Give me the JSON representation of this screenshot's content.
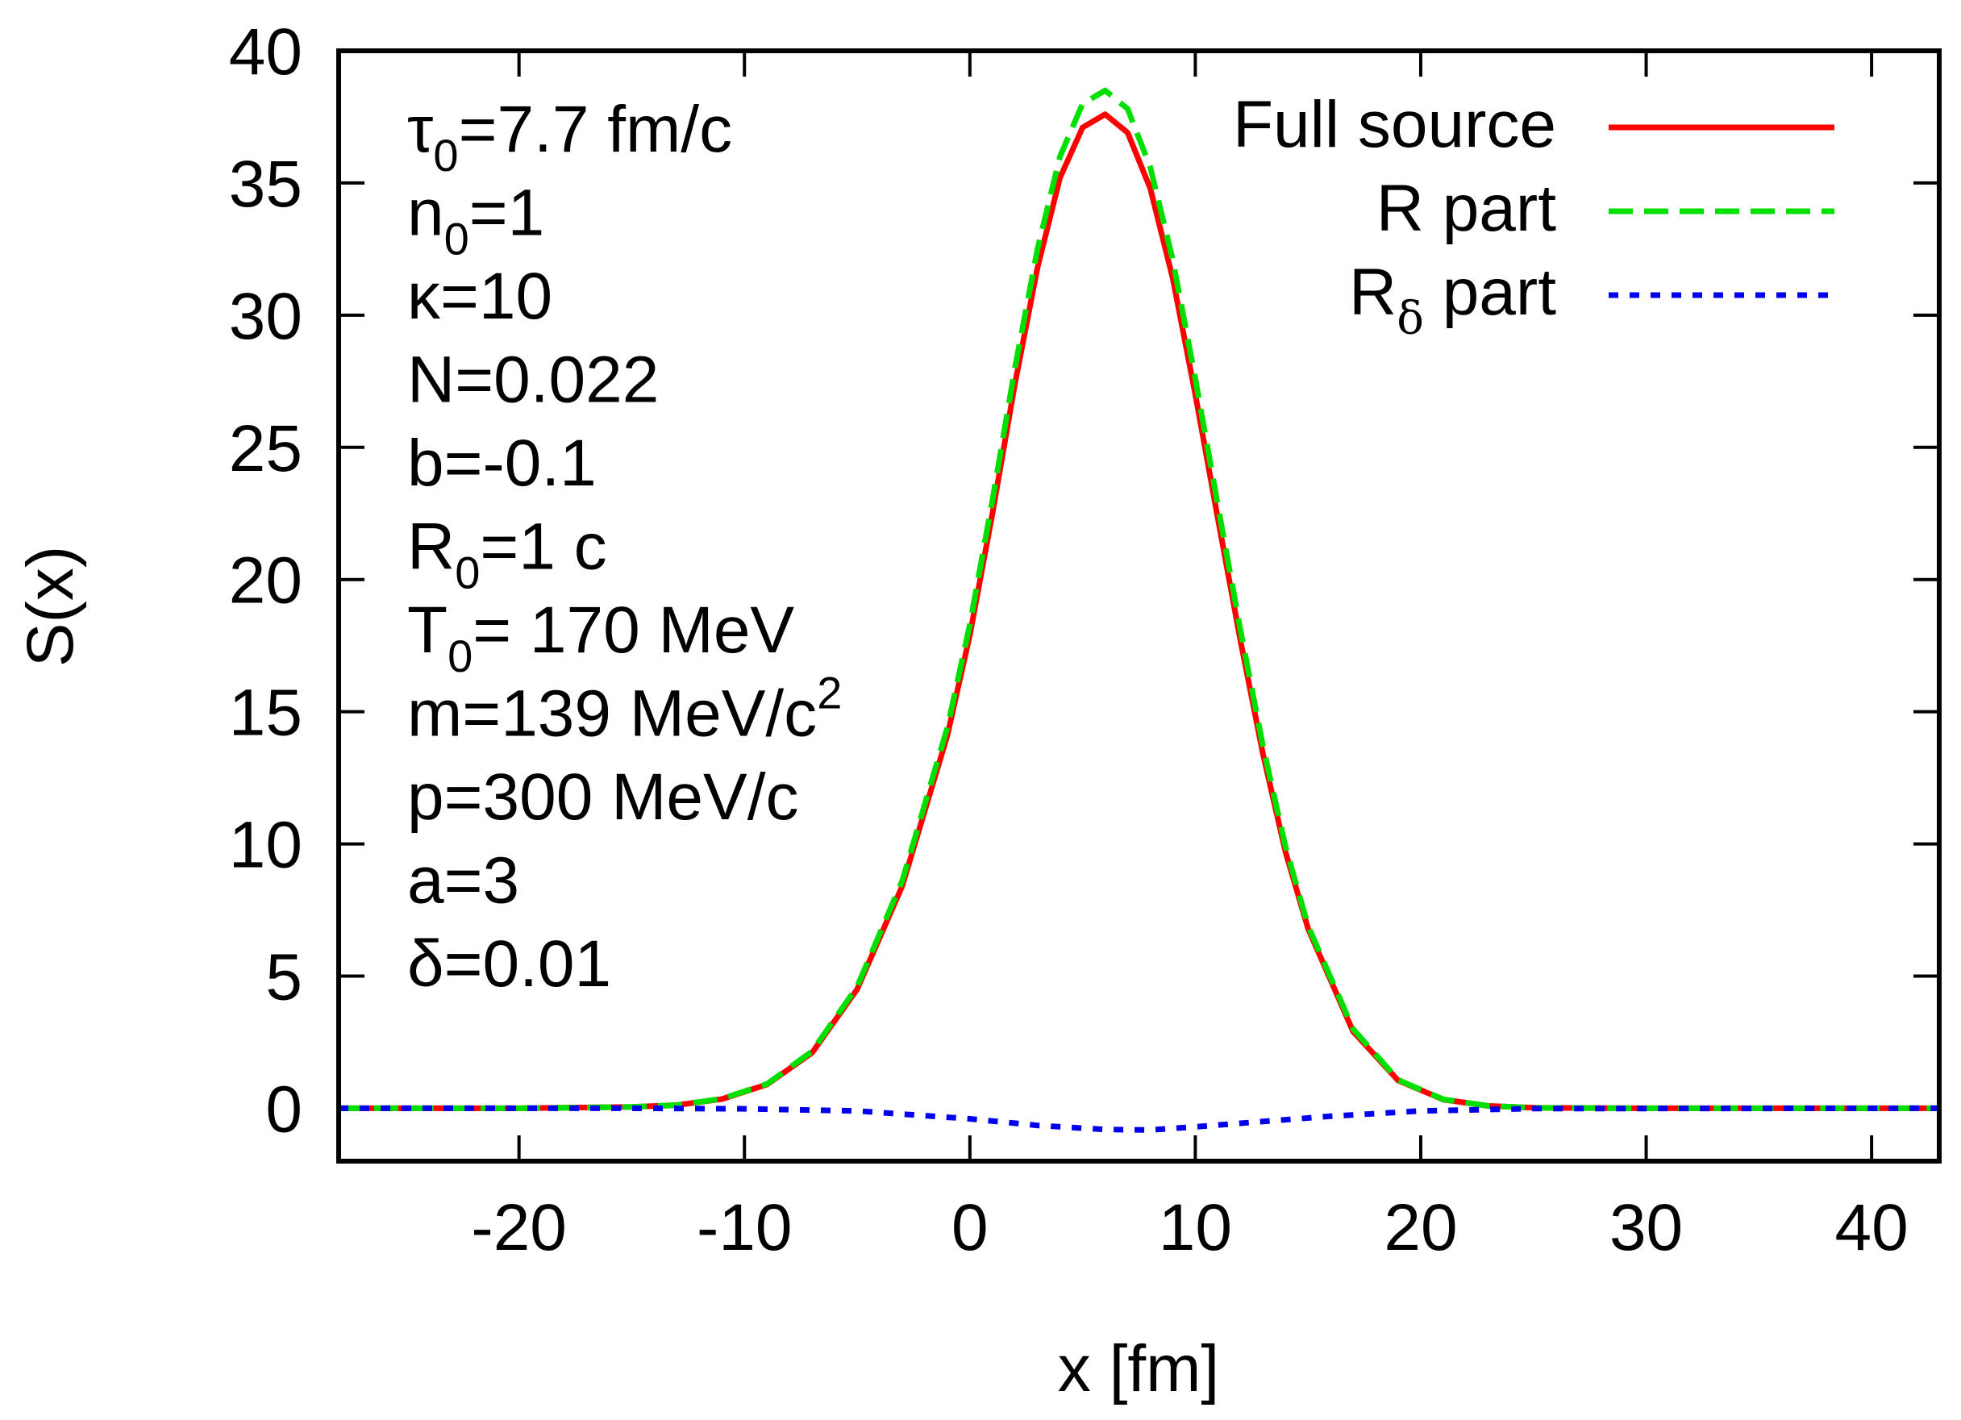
{
  "chart_data": {
    "type": "line",
    "title": "",
    "xlabel": "x [fm]",
    "ylabel": "S(x)",
    "xlim": [
      -28,
      43
    ],
    "ylim": [
      -2,
      40
    ],
    "xticks": [
      -20,
      -10,
      0,
      10,
      20,
      30,
      40
    ],
    "yticks": [
      0,
      5,
      10,
      15,
      20,
      25,
      30,
      35,
      40
    ],
    "grid": false,
    "legend_position": "top-right",
    "series": [
      {
        "name": "Full source",
        "legend_main": "Full source",
        "legend_sub": "",
        "legend_tail": "",
        "color": "#ff0000",
        "style": "solid",
        "x": [
          -28,
          -20,
          -15,
          -13,
          -11,
          -9,
          -7,
          -5,
          -3,
          -1,
          0,
          1,
          2,
          3,
          4,
          5,
          6,
          7,
          8,
          9,
          10,
          11,
          12,
          13,
          14,
          15,
          17,
          19,
          21,
          23,
          25,
          30,
          35,
          43
        ],
        "values": [
          0,
          0,
          0.05,
          0.12,
          0.35,
          0.9,
          2.1,
          4.5,
          8.4,
          14.1,
          17.9,
          22.5,
          27.4,
          31.8,
          35.2,
          37.1,
          37.6,
          36.9,
          34.8,
          31.4,
          27.0,
          22.3,
          17.7,
          13.4,
          9.7,
          6.8,
          2.9,
          1.05,
          0.33,
          0.09,
          0.02,
          0,
          0,
          0
        ]
      },
      {
        "name": "R part",
        "legend_main": "R part",
        "legend_sub": "",
        "legend_tail": "",
        "color": "#00e000",
        "style": "dashed",
        "x": [
          -28,
          -20,
          -15,
          -13,
          -11,
          -9,
          -7,
          -5,
          -3,
          -1,
          0,
          1,
          2,
          3,
          4,
          5,
          6,
          7,
          8,
          9,
          10,
          11,
          12,
          13,
          14,
          15,
          17,
          19,
          21,
          23,
          25,
          30,
          35,
          43
        ],
        "values": [
          0,
          0,
          0.05,
          0.12,
          0.36,
          0.92,
          2.15,
          4.6,
          8.6,
          14.4,
          18.3,
          23.0,
          28.0,
          32.5,
          36.0,
          38.0,
          38.5,
          37.8,
          35.6,
          32.1,
          27.6,
          22.8,
          18.1,
          13.7,
          9.9,
          6.9,
          3.0,
          1.07,
          0.34,
          0.09,
          0.02,
          0,
          0,
          0
        ]
      },
      {
        "name": "Rδ part",
        "legend_main": "R",
        "legend_sub": "δ",
        "legend_tail": " part",
        "color": "#0000ee",
        "style": "dotted",
        "x": [
          -28,
          -15,
          -10,
          -5,
          0,
          3,
          6,
          8,
          10,
          13,
          16,
          20,
          25,
          43
        ],
        "values": [
          0,
          0,
          -0.02,
          -0.1,
          -0.4,
          -0.65,
          -0.8,
          -0.82,
          -0.7,
          -0.5,
          -0.3,
          -0.1,
          -0.01,
          0
        ]
      }
    ],
    "annotations": [
      {
        "main": "τ",
        "sub": "0",
        "tail": "=7.7 fm/c",
        "sup": ""
      },
      {
        "main": "n",
        "sub": "0",
        "tail": "=1",
        "sup": ""
      },
      {
        "main": "κ=10",
        "sub": "",
        "tail": "",
        "sup": ""
      },
      {
        "main": "N=0.022",
        "sub": "",
        "tail": "",
        "sup": ""
      },
      {
        "main": "b=-0.1",
        "sub": "",
        "tail": "",
        "sup": ""
      },
      {
        "main": "R",
        "sub": "0",
        "tail": "=1 c",
        "sup": ""
      },
      {
        "main": "T",
        "sub": "0",
        "tail": "= 170 MeV",
        "sup": ""
      },
      {
        "main": "m=139 MeV/c",
        "sub": "",
        "tail": "",
        "sup": "2"
      },
      {
        "main": "p=300 MeV/c",
        "sub": "",
        "tail": "",
        "sup": ""
      },
      {
        "main": "a=3",
        "sub": "",
        "tail": "",
        "sup": ""
      },
      {
        "main": "δ=0.01",
        "sub": "",
        "tail": "",
        "sup": ""
      }
    ]
  }
}
